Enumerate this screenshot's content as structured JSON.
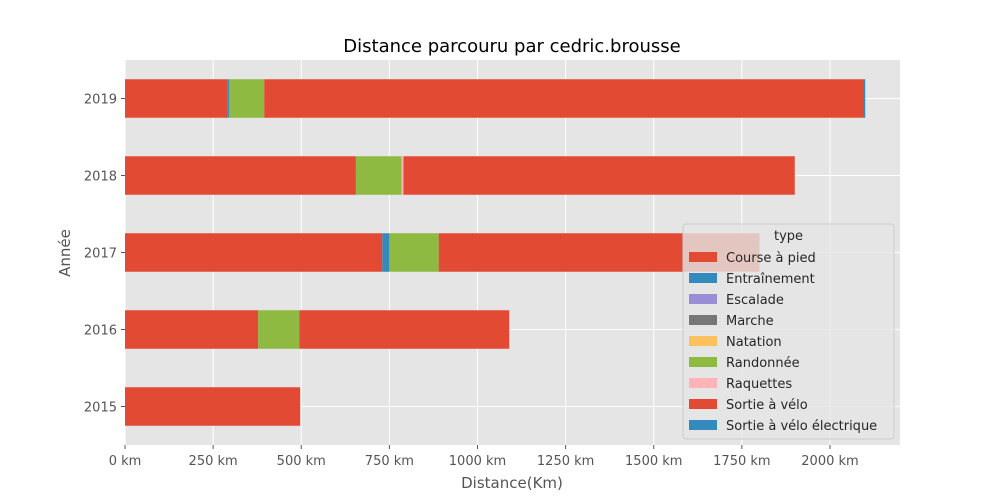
{
  "chart_data": {
    "type": "bar",
    "orientation": "horizontal",
    "stacked": true,
    "title": "Distance parcouru par cedric.brousse",
    "xlabel": "Distance(Km)",
    "ylabel": "Année",
    "x_unit_suffix": " km",
    "xlim": [
      0,
      2200
    ],
    "x_ticks": [
      0,
      250,
      500,
      750,
      1000,
      1250,
      1500,
      1750,
      2000
    ],
    "grid": true,
    "legend_placement": "right",
    "legend_title": "type",
    "categories": [
      "2015",
      "2016",
      "2017",
      "2018",
      "2019"
    ],
    "series": [
      {
        "name": "Course à pied",
        "color": "#E24A33",
        "values": [
          0,
          378,
          730,
          655,
          290
        ]
      },
      {
        "name": "Entraînement",
        "color": "#348ABD",
        "values": [
          0,
          0,
          20,
          0,
          5
        ]
      },
      {
        "name": "Escalade",
        "color": "#988ED5",
        "values": [
          0,
          0,
          0,
          0,
          0
        ]
      },
      {
        "name": "Marche",
        "color": "#777777",
        "values": [
          0,
          0,
          0,
          0,
          0
        ]
      },
      {
        "name": "Natation",
        "color": "#FBC15E",
        "values": [
          0,
          0,
          0,
          0,
          0
        ]
      },
      {
        "name": "Randonnée",
        "color": "#8EBA42",
        "values": [
          0,
          117,
          140,
          130,
          100
        ]
      },
      {
        "name": "Raquettes",
        "color": "#FFB5B8",
        "values": [
          0,
          0,
          0,
          5,
          0
        ]
      },
      {
        "name": "Sortie à vélo",
        "color": "#E24A33",
        "values": [
          497,
          595,
          910,
          1110,
          1700
        ]
      },
      {
        "name": "Sortie à vélo électrique",
        "color": "#348ABD",
        "values": [
          0,
          0,
          0,
          0,
          5
        ]
      }
    ]
  }
}
